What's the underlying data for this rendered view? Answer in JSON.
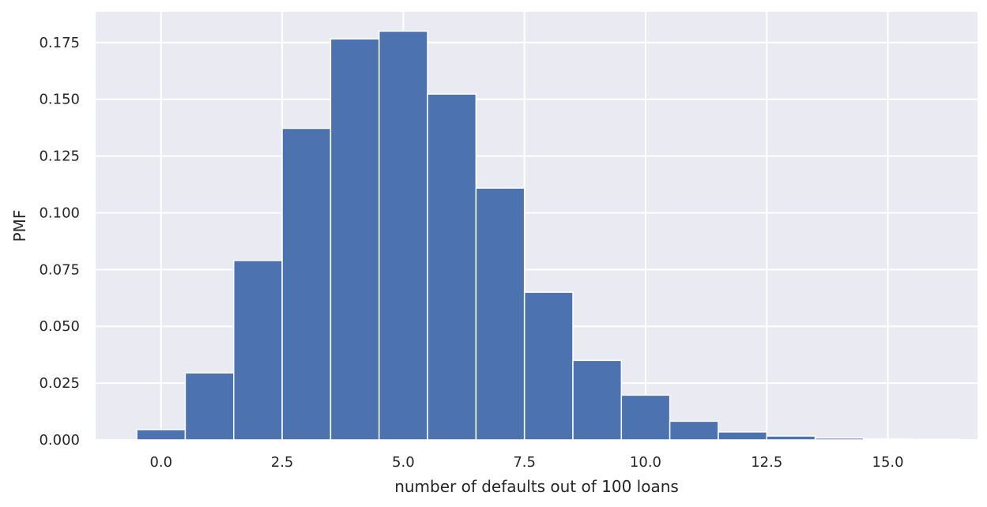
{
  "chart_data": {
    "type": "bar",
    "title": "",
    "xlabel": "number of defaults out of 100 loans",
    "ylabel": "PMF",
    "x": [
      0,
      1,
      2,
      3,
      4,
      5,
      6,
      7,
      8,
      9,
      10,
      11,
      12,
      13,
      14,
      15,
      16
    ],
    "values": [
      0.0045,
      0.0295,
      0.079,
      0.1372,
      0.1766,
      0.18,
      0.1523,
      0.1109,
      0.065,
      0.035,
      0.0197,
      0.0082,
      0.0035,
      0.0017,
      0.0008,
      0.0004,
      0.0002
    ],
    "bar_width": 1.0,
    "xlim": [
      -1.35,
      16.85
    ],
    "ylim": [
      0,
      0.1885
    ],
    "xticks": [
      0.0,
      2.5,
      5.0,
      7.5,
      10.0,
      12.5,
      15.0
    ],
    "xtick_labels": [
      "0.0",
      "2.5",
      "5.0",
      "7.5",
      "10.0",
      "12.5",
      "15.0"
    ],
    "yticks": [
      0.0,
      0.025,
      0.05,
      0.075,
      0.1,
      0.125,
      0.15,
      0.175
    ],
    "ytick_labels": [
      "0.000",
      "0.025",
      "0.050",
      "0.075",
      "0.100",
      "0.125",
      "0.150",
      "0.175"
    ],
    "grid": true,
    "colors": {
      "bar": "#4c72b0",
      "plot_background": "#eaeaf2",
      "grid": "#ffffff",
      "bar_edge": "#ffffff"
    }
  }
}
